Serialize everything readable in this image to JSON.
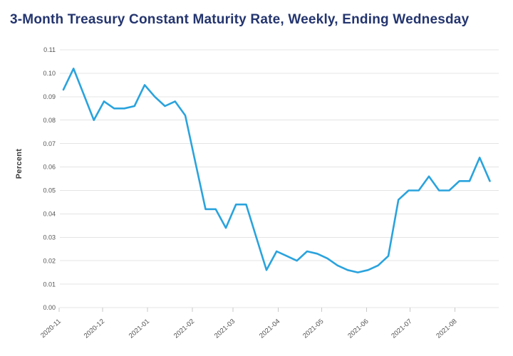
{
  "title": "3-Month Treasury Constant Maturity Rate, Weekly, Ending Wednesday",
  "colors": {
    "title": "#24356f",
    "line": "#2aa3dd",
    "grid": "#e4e4e4",
    "tick": "#c9c9c9",
    "axis_text": "#555555",
    "y_axis_title": "#3d3d3d",
    "background": "#ffffff"
  },
  "chart_data": {
    "type": "line",
    "title": "3-Month Treasury Constant Maturity Rate, Weekly, Ending Wednesday",
    "xlabel": "",
    "ylabel": "Percent",
    "ylim": [
      0,
      0.11
    ],
    "ytick_step": 0.01,
    "grid": true,
    "legend_position": "none",
    "y_tick_labels": [
      "0.00",
      "0.01",
      "0.02",
      "0.03",
      "0.04",
      "0.05",
      "0.06",
      "0.07",
      "0.08",
      "0.09",
      "0.10",
      "0.11"
    ],
    "x_tick_labels": [
      "2020-11",
      "2020-12",
      "2021-01",
      "2021-02",
      "2021-03",
      "2021-04",
      "2021-05",
      "2021-06",
      "2021-07",
      "2021-08"
    ],
    "series": [
      {
        "name": "3-Month Treasury Constant Maturity Rate",
        "x": [
          "2020-11-04",
          "2020-11-11",
          "2020-11-18",
          "2020-11-25",
          "2020-12-02",
          "2020-12-09",
          "2020-12-16",
          "2020-12-23",
          "2020-12-30",
          "2021-01-06",
          "2021-01-13",
          "2021-01-20",
          "2021-01-27",
          "2021-02-03",
          "2021-02-10",
          "2021-02-17",
          "2021-02-24",
          "2021-03-03",
          "2021-03-10",
          "2021-03-17",
          "2021-03-24",
          "2021-03-31",
          "2021-04-07",
          "2021-04-14",
          "2021-04-21",
          "2021-04-28",
          "2021-05-05",
          "2021-05-12",
          "2021-05-19",
          "2021-05-26",
          "2021-06-02",
          "2021-06-09",
          "2021-06-16",
          "2021-06-23",
          "2021-06-30",
          "2021-07-07",
          "2021-07-14",
          "2021-07-21",
          "2021-07-28",
          "2021-08-04",
          "2021-08-11",
          "2021-08-18",
          "2021-08-25"
        ],
        "values": [
          0.093,
          0.102,
          0.091,
          0.08,
          0.088,
          0.085,
          0.085,
          0.086,
          0.095,
          0.09,
          0.086,
          0.088,
          0.082,
          0.062,
          0.042,
          0.042,
          0.034,
          0.044,
          0.044,
          0.03,
          0.016,
          0.024,
          0.022,
          0.02,
          0.024,
          0.023,
          0.021,
          0.018,
          0.016,
          0.015,
          0.016,
          0.018,
          0.022,
          0.046,
          0.05,
          0.05,
          0.056,
          0.05,
          0.05,
          0.054,
          0.054,
          0.064,
          0.054
        ]
      }
    ]
  }
}
